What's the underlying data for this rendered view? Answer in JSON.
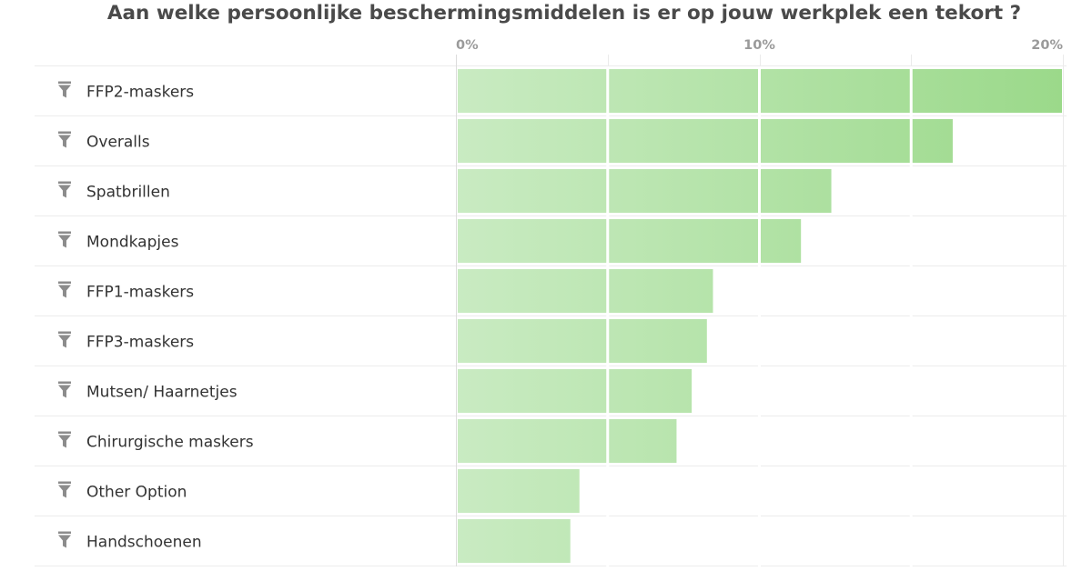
{
  "chart_data": {
    "type": "bar",
    "orientation": "horizontal",
    "title": "Aan welke persoonlijke beschermingsmiddelen is er op jouw werkplek een tekort ?",
    "categories": [
      "FFP2-maskers",
      "Overalls",
      "Spatbrillen",
      "Mondkapjes",
      "FFP1-maskers",
      "FFP3-maskers",
      "Mutsen/ Haarnetjes",
      "Chirurgische maskers",
      "Other Option",
      "Handschoenen"
    ],
    "values": [
      20.0,
      16.4,
      12.4,
      11.4,
      8.5,
      8.3,
      7.8,
      7.3,
      4.1,
      3.8
    ],
    "unit": "%",
    "x_ticks": [
      "0%",
      "10%",
      "20%"
    ],
    "xlim": [
      0,
      20
    ],
    "grid": true,
    "legend": "none",
    "bar_color_light": "#c9ebc2",
    "bar_color_dark": "#9bd98a"
  },
  "row_icon": "filter-icon"
}
